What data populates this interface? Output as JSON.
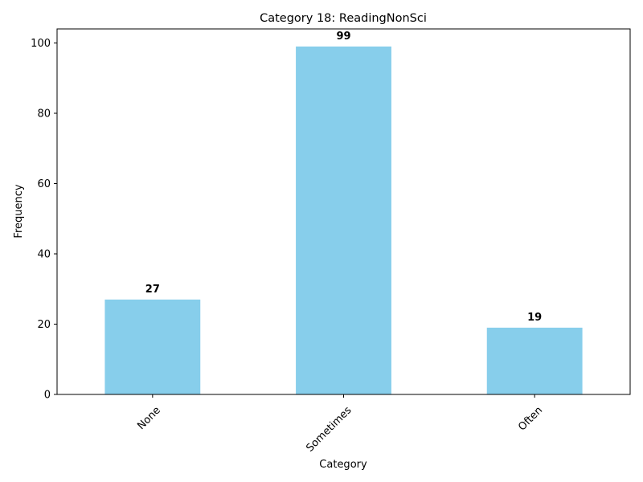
{
  "chart_data": {
    "type": "bar",
    "title": "Category 18: ReadingNonSci",
    "xlabel": "Category",
    "ylabel": "Frequency",
    "categories": [
      "None",
      "Sometimes",
      "Often"
    ],
    "values": [
      27,
      99,
      19
    ],
    "data_labels": [
      "27",
      "99",
      "19"
    ],
    "ylim": [
      0,
      104
    ],
    "yticks": [
      0,
      20,
      40,
      60,
      80,
      100
    ],
    "ytick_labels": [
      "0",
      "20",
      "40",
      "60",
      "80",
      "100"
    ],
    "bar_color": "#87ceeb",
    "grid": false,
    "legend": "none"
  }
}
